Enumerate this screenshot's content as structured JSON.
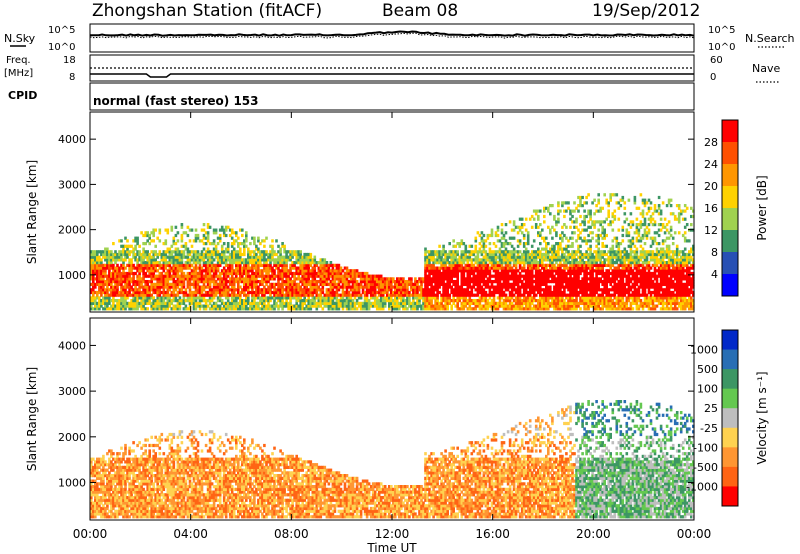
{
  "header": {
    "title": "Zhongshan Station (fitACF)",
    "beam": "Beam 08",
    "date": "19/Sep/2012"
  },
  "top_panels": {
    "nsky_label": "N.Sky",
    "nsearch_label": "N.Search",
    "noise_ticks_left": [
      "10^5",
      "10^0"
    ],
    "noise_ticks_right": [
      "10^5",
      "10^0"
    ],
    "freq_label_top": "Freq.",
    "freq_label_unit": "[MHz]",
    "freq_ticks": [
      "18",
      "8"
    ],
    "nave_label": "Nave",
    "nave_ticks": [
      "60",
      "0"
    ],
    "cpid_label": "CPID",
    "cpid_text": "normal (fast stereo) 153"
  },
  "chart_data": [
    {
      "type": "heatmap",
      "name": "power",
      "ylabel": "Slant Range [km]",
      "yticks": [
        "4000",
        "3000",
        "2000",
        "1000"
      ],
      "ylim": [
        180,
        4600
      ],
      "colorbar_label": "Power [dB]",
      "colorbar_ticks": [
        "28",
        "24",
        "20",
        "16",
        "12",
        "8",
        "4"
      ],
      "colorbar_colors": [
        "#ff0000",
        "#ff5000",
        "#ff9600",
        "#ffd200",
        "#a0d250",
        "#3c9664",
        "#2850b4",
        "#0000ff"
      ],
      "xticks": [
        "00:00",
        "04:00",
        "08:00",
        "12:00",
        "16:00",
        "20:00",
        "00:00"
      ],
      "xlim": [
        0,
        24
      ]
    },
    {
      "type": "heatmap",
      "name": "velocity",
      "ylabel": "Slant Range [km]",
      "yticks": [
        "4000",
        "3000",
        "2000",
        "1000"
      ],
      "ylim": [
        180,
        4600
      ],
      "colorbar_label": "Velocity [m s⁻¹]",
      "colorbar_ticks": [
        "1000",
        "500",
        "100",
        "25",
        "-25",
        "-100",
        "-500",
        "-1000"
      ],
      "colorbar_colors": [
        "#0028c8",
        "#286eb4",
        "#3c9664",
        "#64c850",
        "#bebebe",
        "#ffd250",
        "#ff9632",
        "#ff6414",
        "#ff0000"
      ],
      "xticks": [
        "00:00",
        "04:00",
        "08:00",
        "12:00",
        "16:00",
        "20:00",
        "00:00"
      ],
      "xlim": [
        0,
        24
      ],
      "xlabel": "Time UT"
    }
  ]
}
